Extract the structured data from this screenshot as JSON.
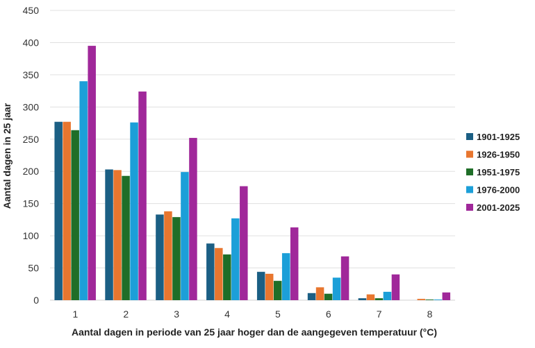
{
  "chart_data": {
    "type": "bar",
    "title": "",
    "xlabel": "Aantal dagen in periode van 25 jaar  hoger dan de aangegeven temperatuur (°C)",
    "ylabel": "Aantal dagen in 25 jaar",
    "ylim": [
      0,
      450
    ],
    "yticks": [
      0,
      50,
      100,
      150,
      200,
      250,
      300,
      350,
      400,
      450
    ],
    "grid": true,
    "legend": "right",
    "categories": [
      "1",
      "2",
      "3",
      "4",
      "5",
      "6",
      "7",
      "8"
    ],
    "series": [
      {
        "name": "1901-1925",
        "color": "#1b5f84",
        "values": [
          277,
          203,
          133,
          88,
          44,
          11,
          3,
          0
        ]
      },
      {
        "name": "1926-1950",
        "color": "#e8762f",
        "values": [
          277,
          202,
          138,
          81,
          41,
          20,
          9,
          2
        ]
      },
      {
        "name": "1951-1975",
        "color": "#1f6e28",
        "values": [
          264,
          193,
          129,
          71,
          30,
          10,
          3,
          1
        ]
      },
      {
        "name": "1976-2000",
        "color": "#1c9fd8",
        "values": [
          340,
          276,
          199,
          127,
          73,
          35,
          13,
          1
        ]
      },
      {
        "name": "2001-2025",
        "color": "#a0289a",
        "values": [
          395,
          324,
          252,
          177,
          113,
          68,
          40,
          12
        ]
      }
    ]
  }
}
